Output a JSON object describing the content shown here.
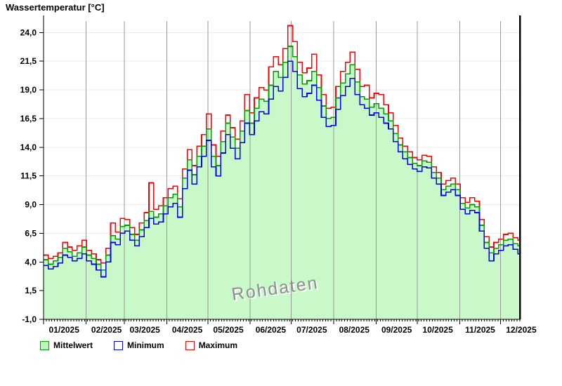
{
  "title": "Wassertemperatur [°C]",
  "watermark": "Rohdaten",
  "legend": [
    {
      "label": "Mittelwert",
      "swatch_fill": "#baf5ba",
      "swatch_border": "#00a000"
    },
    {
      "label": "Minimum",
      "swatch_fill": "#ffffff",
      "swatch_border": "#0000ff"
    },
    {
      "label": "Maximum",
      "swatch_fill": "#ffffff",
      "swatch_border": "#ff0000"
    }
  ],
  "chart_data": {
    "type": "line",
    "step": true,
    "title": "Wassertemperatur [°C]",
    "ylabel": "Wassertemperatur [°C]",
    "xlabel": "",
    "ylim": [
      -1,
      25
    ],
    "y_ticks": [
      -1,
      1.5,
      4,
      6.5,
      9,
      11.5,
      14,
      16.5,
      19,
      21.5,
      24
    ],
    "y_tick_labels": [
      "-1,0",
      "1,5",
      "4,0",
      "6,5",
      "9,0",
      "11,5",
      "14,0",
      "16,5",
      "19,0",
      "21,5",
      "24,0"
    ],
    "x_unit": "day_of_year_2025",
    "x_start_day": 0,
    "x_step_days": 3.5,
    "x_end_day": 348,
    "months": [
      {
        "label": "01/2025",
        "start_day": 0
      },
      {
        "label": "02/2025",
        "start_day": 31
      },
      {
        "label": "03/2025",
        "start_day": 59
      },
      {
        "label": "04/2025",
        "start_day": 90
      },
      {
        "label": "05/2025",
        "start_day": 120
      },
      {
        "label": "06/2025",
        "start_day": 151
      },
      {
        "label": "07/2025",
        "start_day": 181
      },
      {
        "label": "08/2025",
        "start_day": 212
      },
      {
        "label": "09/2025",
        "start_day": 243
      },
      {
        "label": "10/2025",
        "start_day": 273
      },
      {
        "label": "11/2025",
        "start_day": 304
      },
      {
        "label": "12/2025",
        "start_day": 334
      }
    ],
    "grid": {
      "h_color": "#ececec",
      "v_color": "#999999"
    },
    "axis_color": "#000000",
    "end_marker_color": "#000000",
    "series": [
      {
        "name": "Mittelwert",
        "color": "#00a000",
        "fill": "#c9f8c9",
        "values": [
          4.2,
          3.8,
          4.1,
          4.4,
          5.2,
          4.9,
          4.5,
          4.8,
          5.3,
          4.6,
          4.3,
          3.8,
          3.3,
          4.6,
          6.3,
          6.0,
          7.1,
          7.2,
          6.4,
          5.9,
          6.8,
          7.6,
          8.4,
          7.9,
          8.2,
          8.9,
          9.6,
          9.9,
          8.8,
          11.3,
          12.9,
          11.6,
          13.2,
          14.1,
          15.6,
          13.2,
          12.4,
          14.5,
          16.1,
          14.9,
          13.9,
          15.4,
          17.2,
          16.1,
          17.4,
          18.2,
          18.0,
          19.4,
          20.6,
          20.1,
          21.4,
          22.8,
          21.9,
          20.3,
          19.5,
          19.8,
          20.6,
          19.2,
          17.6,
          16.5,
          16.6,
          18.3,
          19.6,
          20.4,
          21.2,
          19.7,
          18.4,
          18.2,
          17.5,
          17.8,
          17.4,
          16.9,
          16.3,
          15.2,
          14.2,
          13.6,
          13.1,
          12.6,
          12.4,
          12.8,
          12.7,
          11.8,
          11.3,
          10.3,
          10.6,
          10.8,
          10.3,
          9.1,
          8.7,
          9.0,
          8.8,
          7.2,
          5.7,
          4.8,
          5.2,
          5.5,
          5.9,
          6.0,
          5.6,
          5.4
        ]
      },
      {
        "name": "Minimum",
        "color": "#0000ff",
        "values": [
          3.7,
          3.4,
          3.6,
          3.9,
          4.6,
          4.4,
          4.1,
          4.3,
          4.7,
          4.1,
          3.8,
          3.3,
          2.7,
          4.0,
          5.7,
          5.5,
          6.5,
          6.7,
          5.9,
          5.4,
          6.2,
          7.0,
          7.8,
          7.3,
          7.5,
          8.2,
          8.8,
          9.1,
          7.9,
          10.4,
          12.0,
          10.8,
          12.3,
          13.2,
          14.6,
          12.3,
          11.5,
          13.5,
          15.1,
          13.9,
          13.0,
          14.4,
          16.1,
          15.1,
          16.3,
          17.1,
          16.9,
          18.2,
          19.3,
          18.9,
          20.1,
          21.5,
          20.6,
          19.1,
          18.4,
          18.7,
          19.4,
          18.1,
          16.6,
          15.8,
          15.9,
          17.3,
          18.5,
          19.3,
          20.0,
          18.6,
          17.7,
          17.4,
          16.8,
          17.0,
          16.6,
          16.1,
          15.6,
          14.5,
          13.6,
          13.0,
          12.5,
          12.1,
          11.9,
          12.3,
          12.2,
          11.3,
          10.8,
          9.8,
          10.1,
          10.3,
          9.8,
          8.6,
          8.2,
          8.5,
          8.3,
          6.7,
          5.2,
          4.1,
          4.7,
          5.0,
          5.4,
          5.5,
          5.1,
          4.7
        ]
      },
      {
        "name": "Maximum",
        "color": "#ff0000",
        "values": [
          4.6,
          4.3,
          4.5,
          4.8,
          5.7,
          5.3,
          5.0,
          5.4,
          5.9,
          5.0,
          4.7,
          4.2,
          3.9,
          5.2,
          7.4,
          6.6,
          7.8,
          7.7,
          7.0,
          6.4,
          7.4,
          8.3,
          10.9,
          8.6,
          8.9,
          9.6,
          10.4,
          10.6,
          9.5,
          12.1,
          13.8,
          12.4,
          14.1,
          15.1,
          16.9,
          14.2,
          13.2,
          15.4,
          16.8,
          15.7,
          14.7,
          16.3,
          18.6,
          17.0,
          18.3,
          19.2,
          19.0,
          21.0,
          21.9,
          21.2,
          22.6,
          24.6,
          23.2,
          21.4,
          20.5,
          20.9,
          22.1,
          20.3,
          18.6,
          17.4,
          17.5,
          19.3,
          20.6,
          21.4,
          22.3,
          20.8,
          19.3,
          19.4,
          18.3,
          18.7,
          18.6,
          17.7,
          17.0,
          15.9,
          14.8,
          14.1,
          13.6,
          13.1,
          12.9,
          13.3,
          13.2,
          12.3,
          11.8,
          10.8,
          11.1,
          11.3,
          10.8,
          9.6,
          9.2,
          9.6,
          9.3,
          7.7,
          6.2,
          5.3,
          5.7,
          6.0,
          6.4,
          6.5,
          6.1,
          5.9
        ]
      }
    ]
  }
}
